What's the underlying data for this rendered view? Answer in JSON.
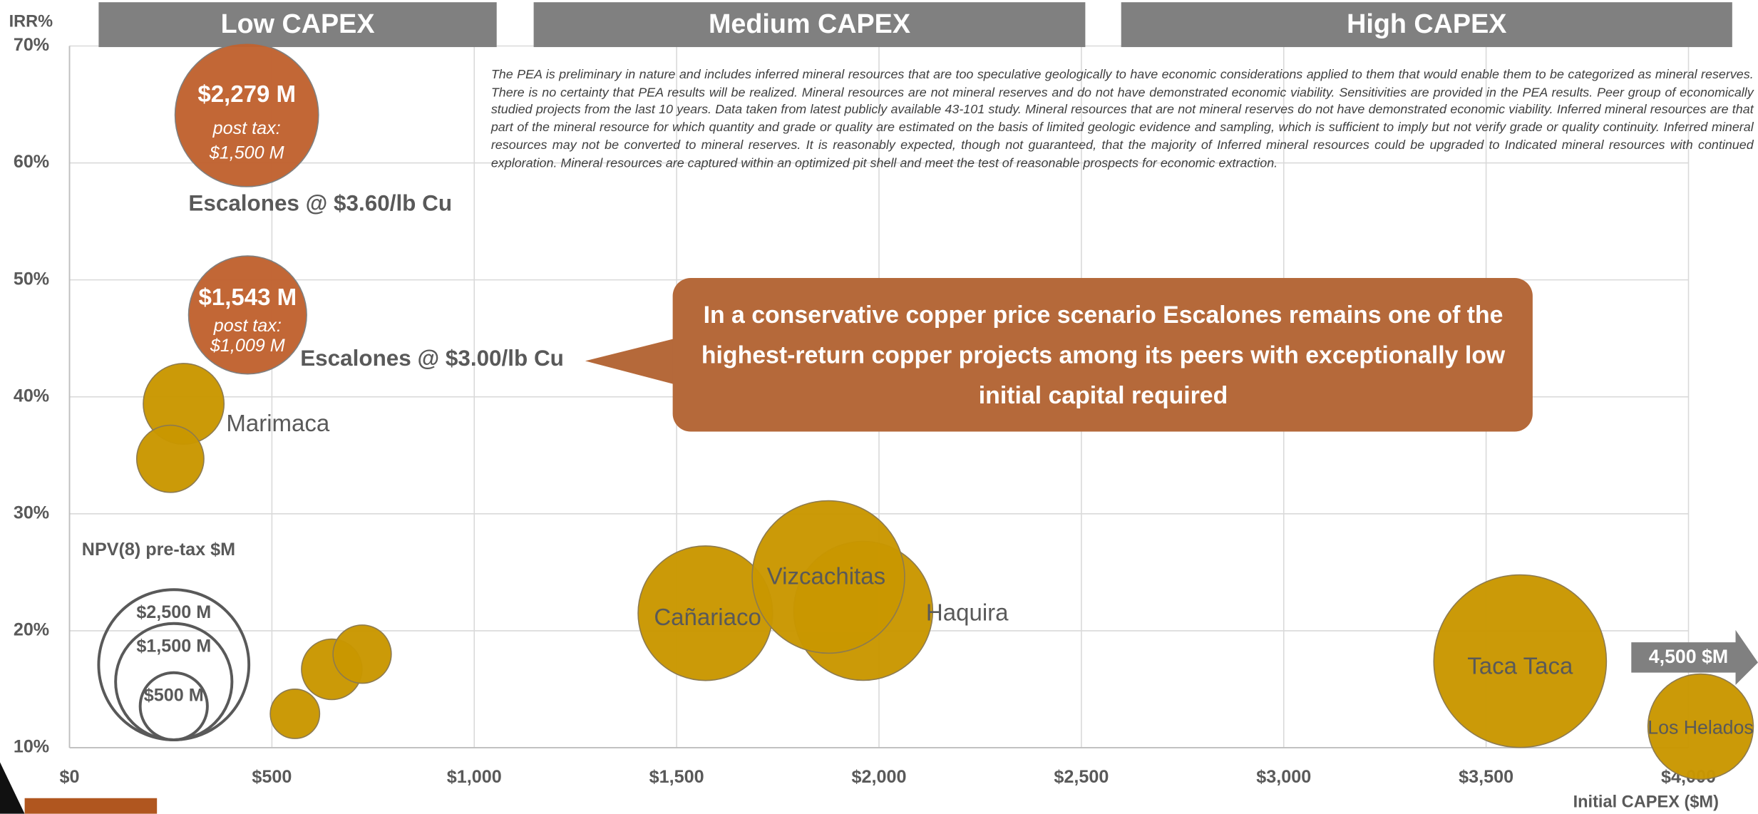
{
  "chart_data": {
    "type": "bubble",
    "y_label": "IRR%",
    "x_label": "Initial CAPEX ($M)",
    "bands": [
      "Low CAPEX",
      "Medium CAPEX",
      "High CAPEX"
    ],
    "names": [
      "Escalones @ $3.60/lb Cu",
      "Escalones @ $3.00/lb Cu",
      "Marimaca",
      null,
      null,
      null,
      null,
      "Cañariaco",
      "Haquira",
      "Vizcachitas",
      "Taca Taca",
      "Los Helados"
    ],
    "x": [
      438,
      440,
      282,
      249,
      557,
      648,
      723,
      1571,
      1961,
      1875,
      3584,
      4030
    ],
    "values": [
      64.1,
      47.0,
      39.4,
      34.7,
      12.9,
      16.7,
      18.0,
      21.5,
      21.7,
      24.6,
      17.4,
      11.8
    ],
    "sizes": [
      2279,
      1543,
      722,
      500,
      270,
      406,
      376,
      2005,
      2140,
      2575,
      3300,
      1230
    ],
    "value_labels": [
      "$2,279 M",
      "$1,543 M",
      null,
      null,
      null,
      null,
      null,
      null,
      null,
      null,
      null,
      null
    ],
    "post_tax_text": "post tax:",
    "post_tax_labels": [
      "$1,500 M",
      "$1,009 M",
      null,
      null,
      null,
      null,
      null,
      null,
      null,
      null,
      null,
      null
    ],
    "colors": [
      "#c0622f",
      "#c0622f",
      "#c99700",
      "#c99700",
      "#c99700",
      "#c99700",
      "#c99700",
      "#c99700",
      "#c99700",
      "#c99700",
      "#c99700",
      "#c99700"
    ],
    "xlim": [
      0,
      4000
    ],
    "xticks": [
      {
        "value": 0,
        "label": "$0"
      },
      {
        "value": 500,
        "label": "$500"
      },
      {
        "value": 1000,
        "label": "$1,000"
      },
      {
        "value": 1500,
        "label": "$1,500"
      },
      {
        "value": 2000,
        "label": "$2,000"
      },
      {
        "value": 2500,
        "label": "$2,500"
      },
      {
        "value": 3000,
        "label": "$3,000"
      },
      {
        "value": 3500,
        "label": "$3,500"
      },
      {
        "value": 4000,
        "label": "$4,000"
      }
    ],
    "ylim": [
      10,
      70
    ],
    "yticks": [
      {
        "value": 10,
        "label": "10%"
      },
      {
        "value": 20,
        "label": "20%"
      },
      {
        "value": 30,
        "label": "30%"
      },
      {
        "value": 40,
        "label": "40%"
      },
      {
        "value": 50,
        "label": "50%"
      },
      {
        "value": 60,
        "label": "60%"
      },
      {
        "value": 70,
        "label": "70%"
      }
    ],
    "grid": true,
    "size_legend": {
      "title": "NPV(8) pre-tax $M",
      "values": [
        2500,
        1500,
        500
      ],
      "labels": [
        "$2,500 M",
        "$1,500 M",
        "$500 M"
      ]
    },
    "callout": "In a conservative copper price scenario Escalones remains one of the highest-return copper projects among its peers with exceptionally low initial capital required",
    "offscale_note": "4,500 $M",
    "disclaimer": "The PEA is preliminary in nature and includes inferred mineral resources that are too speculative geologically to have economic considerations applied to them that would enable them to be categorized as mineral reserves. There is no certainty that PEA results will be realized. Mineral resources are not mineral reserves and do not have demonstrated economic viability. Sensitivities are provided in the PEA results. Peer group of economically studied projects from the last 10 years. Data taken from latest publicly available 43-101 study. Mineral resources that are not mineral reserves do not have demonstrated economic viability. Inferred mineral resources are that part of the mineral resource for which quantity and grade or quality are estimated on the basis of limited geologic evidence and sampling, which is sufficient to imply but not verify grade or quality continuity. Inferred mineral resources may not be converted to mineral reserves. It is reasonably expected, though not guaranteed, that the majority of Inferred mineral resources could be upgraded to Indicated mineral resources with continued exploration. Mineral resources are captured within an optimized pit shell and meet the test of reasonable prospects for economic extraction."
  }
}
